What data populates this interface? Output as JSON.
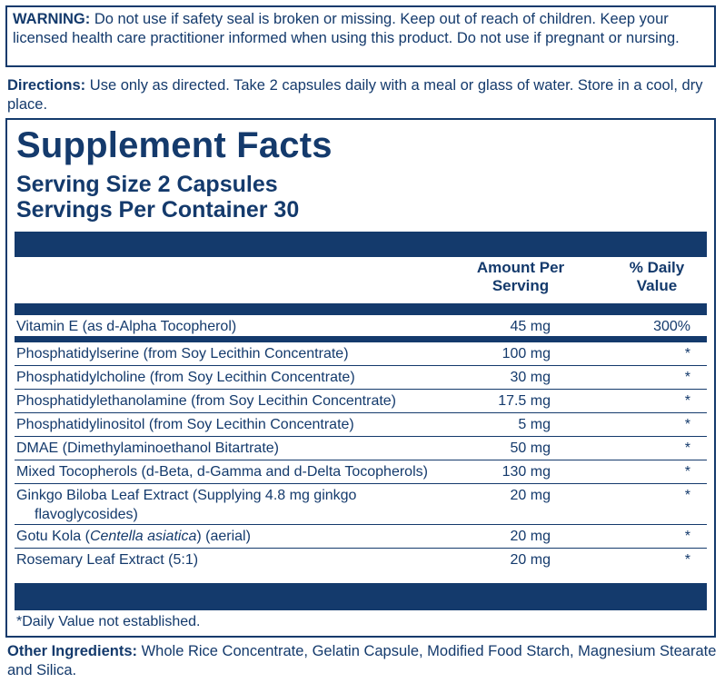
{
  "warning": {
    "label": "WARNING:",
    "text": " Do not use if safety seal is broken or missing. Keep out of reach of children. Keep your licensed health care practitioner informed when using this product. Do not use if pregnant or nursing."
  },
  "directions": {
    "label": "Directions:",
    "text": " Use only as directed. Take 2 capsules daily with a  meal or glass of water. Store in a cool, dry place."
  },
  "facts": {
    "title": "Supplement Facts",
    "serving_size": "Serving Size 2 Capsules",
    "servings_per_container": "Servings Per Container 30",
    "col_amount_line1": "Amount Per",
    "col_amount_line2": "Serving",
    "col_dv_line1": "% Daily",
    "col_dv_line2": "Value",
    "rows": [
      {
        "name": "Vitamin E (as d-Alpha Tocopherol)",
        "amount": "45 mg",
        "dv": "300%"
      },
      {
        "name": "Phosphatidylserine (from Soy Lecithin Concentrate)",
        "amount": "100 mg",
        "dv": "*"
      },
      {
        "name": "Phosphatidylcholine (from Soy Lecithin Concentrate)",
        "amount": "30 mg",
        "dv": "*"
      },
      {
        "name": "Phosphatidylethanolamine (from Soy Lecithin Concentrate)",
        "amount": "17.5 mg",
        "dv": "*"
      },
      {
        "name": "Phosphatidylinositol (from Soy Lecithin Concentrate)",
        "amount": "5 mg",
        "dv": "*"
      },
      {
        "name": "DMAE (Dimethylaminoethanol Bitartrate)",
        "amount": "50 mg",
        "dv": "*"
      },
      {
        "name": "Mixed Tocopherols (d-Beta, d-Gamma and d-Delta Tocopherols)",
        "amount": "130 mg",
        "dv": "*"
      },
      {
        "name": "Ginkgo Biloba Leaf Extract (Supplying 4.8 mg ginkgo",
        "name_cont": "flavoglycosides)",
        "amount": "20 mg",
        "dv": "*"
      },
      {
        "name_pre": "Gotu Kola (",
        "name_italic": "Centella asiatica",
        "name_post": ") (aerial)",
        "amount": "20 mg",
        "dv": "*"
      },
      {
        "name": "Rosemary Leaf Extract (5:1)",
        "amount": "20 mg",
        "dv": "*"
      }
    ],
    "footnote": "*Daily Value not established."
  },
  "other_ingredients": {
    "label": "Other Ingredients:",
    "text": " Whole Rice Concentrate, Gelatin Capsule, Modified Food Starch, Magnesium Stearate and Silica."
  },
  "colors": {
    "brand_navy": "#143a6c"
  }
}
